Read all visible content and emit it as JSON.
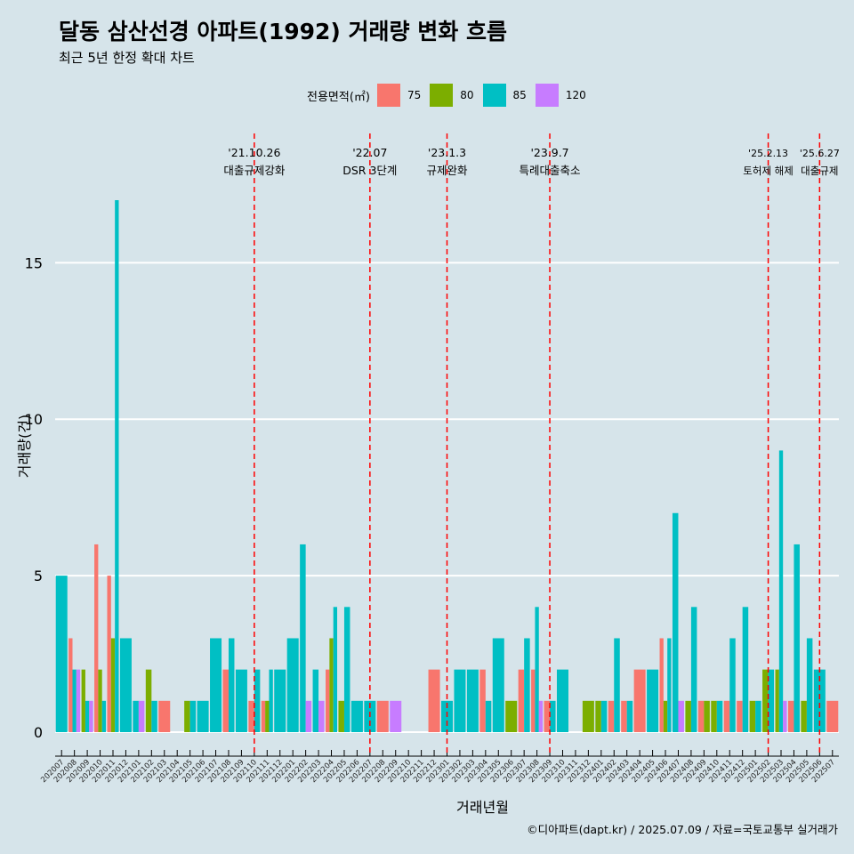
{
  "chart_data": {
    "type": "bar",
    "title": "달동 삼산선경 아파트(1992) 거래량 변화 흐름",
    "subtitle": "최근 5년 한정 확대 차트",
    "xlabel": "거래년월",
    "ylabel": "거래량(건)",
    "ylim": [
      0,
      18
    ],
    "yticks": [
      0,
      5,
      10,
      15
    ],
    "grid": true,
    "legend": {
      "title": "전용면적(㎡)",
      "position": "top",
      "entries": [
        {
          "name": "75",
          "color": "#F8766D"
        },
        {
          "name": "80",
          "color": "#7CAE00"
        },
        {
          "name": "85",
          "color": "#00BFC4"
        },
        {
          "name": "120",
          "color": "#C77CFF"
        }
      ]
    },
    "categories": [
      "202007",
      "202008",
      "202009",
      "202010",
      "202011",
      "202012",
      "202101",
      "202102",
      "202103",
      "202104",
      "202105",
      "202106",
      "202107",
      "202108",
      "202109",
      "202110",
      "202111",
      "202112",
      "202201",
      "202202",
      "202203",
      "202204",
      "202205",
      "202206",
      "202207",
      "202208",
      "202209",
      "202210",
      "202211",
      "202212",
      "202301",
      "202302",
      "202303",
      "202304",
      "202305",
      "202306",
      "202307",
      "202308",
      "202309",
      "202310",
      "202311",
      "202312",
      "202401",
      "202402",
      "202403",
      "202404",
      "202405",
      "202406",
      "202407",
      "202408",
      "202409",
      "202410",
      "202411",
      "202412",
      "202501",
      "202502",
      "202503",
      "202504",
      "202505",
      "202506",
      "202507"
    ],
    "series": [
      {
        "name": "75",
        "values": [
          0,
          3,
          0,
          6,
          5,
          0,
          0,
          0,
          1,
          0,
          0,
          0,
          0,
          2,
          0,
          1,
          1,
          0,
          0,
          0,
          0,
          2,
          0,
          0,
          0,
          1,
          0,
          0,
          0,
          2,
          0,
          0,
          0,
          2,
          0,
          0,
          2,
          2,
          1,
          0,
          0,
          0,
          0,
          1,
          1,
          2,
          0,
          3,
          0,
          0,
          1,
          0,
          1,
          1,
          0,
          0,
          0,
          1,
          0,
          0,
          1
        ]
      },
      {
        "name": "80",
        "values": [
          0,
          0,
          2,
          2,
          3,
          0,
          0,
          2,
          0,
          0,
          1,
          0,
          0,
          0,
          0,
          0,
          1,
          0,
          0,
          0,
          0,
          3,
          1,
          0,
          0,
          0,
          0,
          0,
          0,
          0,
          0,
          0,
          0,
          0,
          0,
          1,
          0,
          0,
          0,
          0,
          0,
          1,
          1,
          0,
          0,
          0,
          0,
          1,
          0,
          1,
          1,
          1,
          0,
          0,
          1,
          2,
          2,
          0,
          1,
          0,
          0
        ]
      },
      {
        "name": "85",
        "values": [
          5,
          2,
          1,
          1,
          17,
          3,
          1,
          1,
          0,
          0,
          1,
          1,
          3,
          3,
          2,
          2,
          2,
          2,
          3,
          6,
          2,
          4,
          4,
          1,
          1,
          0,
          0,
          0,
          0,
          0,
          1,
          2,
          2,
          1,
          3,
          0,
          3,
          4,
          1,
          2,
          0,
          0,
          1,
          3,
          1,
          0,
          2,
          3,
          7,
          4,
          0,
          1,
          3,
          4,
          1,
          2,
          9,
          6,
          3,
          2,
          0
        ]
      },
      {
        "name": "120",
        "values": [
          0,
          2,
          1,
          0,
          0,
          0,
          1,
          0,
          0,
          0,
          0,
          0,
          0,
          0,
          0,
          0,
          0,
          0,
          0,
          1,
          1,
          0,
          0,
          0,
          0,
          0,
          1,
          0,
          0,
          0,
          0,
          0,
          0,
          0,
          0,
          0,
          0,
          1,
          0,
          0,
          0,
          0,
          0,
          0,
          0,
          0,
          0,
          0,
          1,
          0,
          0,
          0,
          0,
          0,
          0,
          0,
          1,
          0,
          0,
          0,
          0
        ]
      }
    ],
    "events": [
      {
        "x": "202110",
        "date": "'21.10.26",
        "label": "대출규제강화"
      },
      {
        "x": "202207",
        "date": "'22.07",
        "label": "DSR 3단계"
      },
      {
        "x": "202301",
        "date": "'23.1.3",
        "label": "규제완화"
      },
      {
        "x": "202309",
        "date": "'23.9.7",
        "label": "특례대출축소"
      },
      {
        "x": "202502",
        "date": "'25.2.13",
        "label": "토허제 해제"
      },
      {
        "x": "202506",
        "date": "'25.6.27",
        "label": "대출규제"
      }
    ],
    "caption": "©디아파트(dapt.kr) / 2025.07.09 / 자료=국토교통부 실거래가"
  }
}
